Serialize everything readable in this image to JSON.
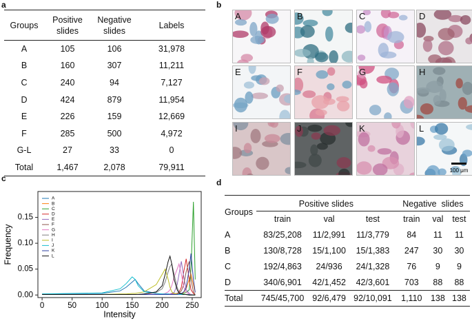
{
  "panel_labels": [
    "a",
    "b",
    "c",
    "d"
  ],
  "table_a": {
    "header": [
      "Groups",
      "Positive slides",
      "Negative slides",
      "Labels"
    ],
    "rows": [
      [
        "A",
        "105",
        "106",
        "31,978"
      ],
      [
        "B",
        "160",
        "307",
        "11,211"
      ],
      [
        "C",
        "240",
        "94",
        "7,127"
      ],
      [
        "D",
        "424",
        "879",
        "11,954"
      ],
      [
        "E",
        "226",
        "159",
        "12,669"
      ],
      [
        "F",
        "285",
        "500",
        "4,972"
      ],
      [
        "G-L",
        "27",
        "33",
        "0"
      ],
      [
        "Total",
        "1,467",
        "2,078",
        "79,911"
      ]
    ]
  },
  "images": {
    "labels": [
      "A",
      "B",
      "C",
      "D",
      "E",
      "F",
      "G",
      "H",
      "I",
      "J",
      "K",
      "L"
    ],
    "scale_bar": "100 μm"
  },
  "chart_data": {
    "type": "line",
    "xlabel": "Intensity",
    "ylabel": "Frequency",
    "x": [
      0,
      100,
      130,
      140,
      150,
      155,
      160,
      170,
      190,
      200,
      205,
      210,
      213,
      216,
      220,
      225,
      228,
      232,
      236,
      240,
      245,
      248,
      252,
      255
    ],
    "xlim": [
      -7,
      265
    ],
    "ylim": [
      -0.005,
      0.2
    ],
    "xticks": [
      0,
      50,
      100,
      150,
      200,
      250
    ],
    "yticks": [
      {
        "value": 0,
        "label": "0.00"
      },
      {
        "value": 0.05,
        "label": "0.05"
      },
      {
        "value": 0.1,
        "label": "0.10"
      },
      {
        "value": 0.15,
        "label": "0.15"
      }
    ],
    "legend": "upper left",
    "series": [
      {
        "name": "A",
        "color": "#1f77b4",
        "values": [
          0.002,
          0.003,
          0.008,
          0.015,
          0.025,
          0.03,
          0.022,
          0.008,
          0.003,
          0.002,
          0.002,
          0.002,
          0.001,
          0.001,
          0.001,
          0.001,
          0.001,
          0.001,
          0.001,
          0.001,
          0.001,
          0.001,
          0,
          0
        ]
      },
      {
        "name": "B",
        "color": "#ff7f0e",
        "values": [
          0.001,
          0.001,
          0.001,
          0.001,
          0.001,
          0.001,
          0.001,
          0.001,
          0.001,
          0.001,
          0.001,
          0.001,
          0.001,
          0.001,
          0.001,
          0.002,
          0.002,
          0.003,
          0.005,
          0.012,
          0.03,
          0.04,
          0.02,
          0.005
        ]
      },
      {
        "name": "C",
        "color": "#2ca02c",
        "values": [
          0.001,
          0.001,
          0.001,
          0.001,
          0.001,
          0.001,
          0.001,
          0.001,
          0.001,
          0.001,
          0.001,
          0.001,
          0.001,
          0.001,
          0.001,
          0.001,
          0.001,
          0.002,
          0.003,
          0.005,
          0.01,
          0.05,
          0.18,
          0.03
        ]
      },
      {
        "name": "D",
        "color": "#d62728",
        "values": [
          0.001,
          0.001,
          0.001,
          0.001,
          0.001,
          0.001,
          0.001,
          0.001,
          0.001,
          0.001,
          0.001,
          0.001,
          0.001,
          0.002,
          0.002,
          0.003,
          0.005,
          0.015,
          0.045,
          0.07,
          0.03,
          0.01,
          0.003,
          0
        ]
      },
      {
        "name": "E",
        "color": "#9467bd",
        "values": [
          0.001,
          0.001,
          0.001,
          0.001,
          0.001,
          0.001,
          0.001,
          0.001,
          0.001,
          0.001,
          0.001,
          0.002,
          0.002,
          0.003,
          0.005,
          0.02,
          0.04,
          0.065,
          0.035,
          0.01,
          0.003,
          0.001,
          0,
          0
        ]
      },
      {
        "name": "F",
        "color": "#8c564b",
        "values": [
          0.001,
          0.001,
          0.001,
          0.001,
          0.001,
          0.001,
          0.001,
          0.001,
          0.001,
          0.001,
          0.001,
          0.001,
          0.001,
          0.001,
          0.002,
          0.003,
          0.004,
          0.008,
          0.02,
          0.045,
          0.065,
          0.03,
          0.006,
          0.001
        ]
      },
      {
        "name": "G",
        "color": "#e377c2",
        "values": [
          0.001,
          0.001,
          0.001,
          0.001,
          0.001,
          0.001,
          0.001,
          0.001,
          0.002,
          0.002,
          0.003,
          0.006,
          0.01,
          0.018,
          0.035,
          0.05,
          0.06,
          0.04,
          0.015,
          0.005,
          0.002,
          0.001,
          0,
          0
        ]
      },
      {
        "name": "H",
        "color": "#7f7f7f",
        "values": [
          0.001,
          0.001,
          0.001,
          0.001,
          0.001,
          0.001,
          0.001,
          0.002,
          0.005,
          0.012,
          0.025,
          0.045,
          0.055,
          0.06,
          0.04,
          0.015,
          0.006,
          0.002,
          0.001,
          0.001,
          0,
          0,
          0,
          0
        ]
      },
      {
        "name": "I",
        "color": "#bcbd22",
        "values": [
          0.001,
          0.001,
          0.002,
          0.002,
          0.003,
          0.003,
          0.004,
          0.006,
          0.02,
          0.04,
          0.05,
          0.03,
          0.015,
          0.006,
          0.003,
          0.002,
          0.001,
          0.001,
          0.001,
          0.001,
          0,
          0,
          0,
          0
        ]
      },
      {
        "name": "J",
        "color": "#17becf",
        "values": [
          0.002,
          0.004,
          0.012,
          0.022,
          0.035,
          0.03,
          0.018,
          0.006,
          0.003,
          0.002,
          0.002,
          0.002,
          0.001,
          0.001,
          0.001,
          0.001,
          0.001,
          0.001,
          0.001,
          0.001,
          0,
          0,
          0,
          0
        ]
      },
      {
        "name": "K",
        "color": "#2b3fa0",
        "values": [
          0.001,
          0.001,
          0.001,
          0.001,
          0.001,
          0.001,
          0.001,
          0.001,
          0.001,
          0.001,
          0.001,
          0.001,
          0.001,
          0.001,
          0.001,
          0.001,
          0.002,
          0.003,
          0.006,
          0.015,
          0.05,
          0.08,
          0.03,
          0.005
        ]
      },
      {
        "name": "L",
        "color": "#111111",
        "values": [
          0.001,
          0.001,
          0.001,
          0.001,
          0.001,
          0.001,
          0.001,
          0.002,
          0.006,
          0.018,
          0.04,
          0.065,
          0.075,
          0.06,
          0.03,
          0.01,
          0.004,
          0.002,
          0.001,
          0.001,
          0,
          0,
          0,
          0
        ]
      }
    ]
  },
  "table_d": {
    "group_header": "Groups",
    "positive_header": "Positive slides",
    "negative_header": "Negative  slides",
    "subheaders": [
      "train",
      "val",
      "test",
      "train",
      "val",
      "test"
    ],
    "rows": [
      [
        "A",
        "83/25,208",
        "11/2,991",
        "11/3,779",
        "84",
        "11",
        "11"
      ],
      [
        "B",
        "130/8,728",
        "15/1,100",
        "15/1,383",
        "247",
        "30",
        "30"
      ],
      [
        "C",
        "192/4,863",
        "24/936",
        "24/1,328",
        "76",
        "9",
        "9"
      ],
      [
        "D",
        "340/6,901",
        "42/1,452",
        "42/3,601",
        "703",
        "88",
        "88"
      ],
      [
        "Total",
        "745/45,700",
        "92/6,479",
        "92/10,091",
        "1,110",
        "138",
        "138"
      ]
    ]
  }
}
